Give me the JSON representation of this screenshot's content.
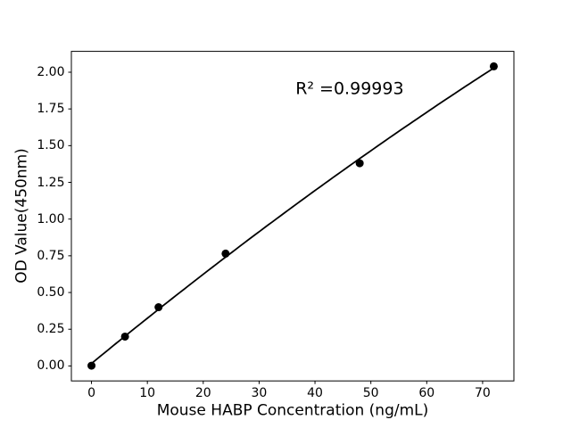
{
  "chart_data": {
    "type": "scatter",
    "title": "",
    "xlabel": "Mouse HABP Concentration (ng/mL)",
    "ylabel": "OD Value(450nm)",
    "x": [
      0,
      6,
      12,
      24,
      48,
      72
    ],
    "y": [
      0.002,
      0.2,
      0.4,
      0.765,
      1.38,
      2.04
    ],
    "fit_type": "quadratic",
    "annotation": {
      "text": "R² =0.99993",
      "x": 46.2,
      "y": 1.885
    },
    "xlim": [
      -3.6,
      75.6
    ],
    "ylim": [
      -0.102,
      2.142
    ],
    "xticks": {
      "values": [
        0,
        10,
        20,
        30,
        40,
        50,
        60,
        70
      ],
      "labels": [
        "0",
        "10",
        "20",
        "30",
        "40",
        "50",
        "60",
        "70"
      ]
    },
    "yticks": {
      "values": [
        0.0,
        0.25,
        0.5,
        0.75,
        1.0,
        1.25,
        1.5,
        1.75,
        2.0
      ],
      "labels": [
        "0.00",
        "0.25",
        "0.50",
        "0.75",
        "1.00",
        "1.25",
        "1.50",
        "1.75",
        "2.00"
      ]
    },
    "grid": false,
    "legend": null,
    "marker_color": "#000000",
    "line_color": "#000000",
    "axis_color": "#000000",
    "background_color": "#ffffff"
  }
}
